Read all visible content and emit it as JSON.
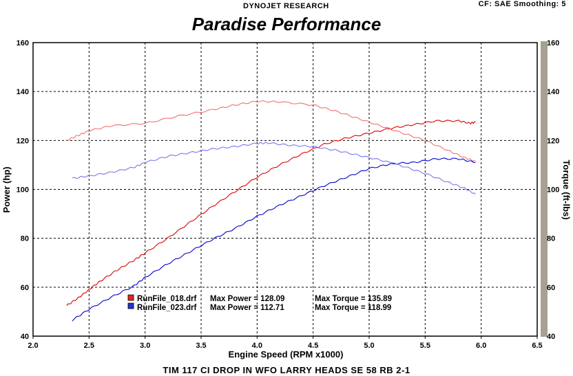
{
  "header": {
    "left": "DYNOJET RESEARCH",
    "right": "CF: SAE  Smoothing: 5"
  },
  "chart_data": {
    "type": "line",
    "title": "Paradise Performance",
    "subtitle": "TIM 117 CI DROP IN WFO LARRY HEADS SE 58 RB 2-1",
    "xlabel": "Engine Speed (RPM x1000)",
    "ylabel": "Power (hp)",
    "y2label": "Torque (ft-lbs)",
    "xlim": [
      2.0,
      6.5
    ],
    "ylim": [
      40,
      160
    ],
    "y2lim": [
      40,
      160
    ],
    "xticks": [
      "2.0",
      "2.5",
      "3.0",
      "3.5",
      "4.0",
      "4.5",
      "5.0",
      "5.5",
      "6.0",
      "6.5"
    ],
    "yticks": [
      "40",
      "60",
      "80",
      "100",
      "120",
      "140",
      "160"
    ],
    "grid": true,
    "colors": {
      "run018_power": "#dd0000",
      "run018_torque": "#f07070",
      "run023_power": "#0000cc",
      "run023_torque": "#7777ee"
    },
    "legend": [
      {
        "run": "RunFile_018.drf",
        "power_label": "Max Power = 128.09",
        "torque_label": "Max Torque = 135.89",
        "color": "#ee2222"
      },
      {
        "run": "RunFile_023.drf",
        "power_label": "Max Power = 112.71",
        "torque_label": "Max Torque = 118.99",
        "color": "#2233dd"
      }
    ],
    "series": [
      {
        "name": "RunFile_018 Power",
        "axis": "left",
        "color_key": "run018_power",
        "x": [
          2.3,
          2.4,
          2.5,
          2.6,
          2.75,
          2.9,
          3.0,
          3.2,
          3.4,
          3.6,
          3.8,
          4.0,
          4.2,
          4.4,
          4.6,
          4.8,
          5.0,
          5.2,
          5.4,
          5.6,
          5.8,
          5.9,
          5.95
        ],
        "y": [
          52.5,
          55.5,
          59,
          62.5,
          67,
          71,
          74,
          80,
          86.5,
          93,
          99,
          105,
          110,
          114.5,
          118.5,
          121,
          123,
          125,
          126.5,
          128,
          128,
          127,
          127.5
        ]
      },
      {
        "name": "RunFile_018 Torque",
        "axis": "right",
        "color_key": "run018_torque",
        "x": [
          2.3,
          2.4,
          2.5,
          2.7,
          3.0,
          3.3,
          3.6,
          3.8,
          4.0,
          4.2,
          4.5,
          4.7,
          4.9,
          5.1,
          5.3,
          5.5,
          5.7,
          5.85,
          5.95
        ],
        "y": [
          120,
          122,
          124,
          126,
          127,
          130,
          132.5,
          134.5,
          136,
          135.8,
          134.5,
          132,
          129,
          126,
          123,
          120,
          116,
          113,
          111.5
        ]
      },
      {
        "name": "RunFile_023 Power",
        "axis": "left",
        "color_key": "run023_power",
        "x": [
          2.35,
          2.5,
          2.7,
          2.9,
          3.0,
          3.2,
          3.4,
          3.6,
          3.8,
          4.0,
          4.2,
          4.4,
          4.6,
          4.8,
          5.0,
          5.2,
          5.4,
          5.6,
          5.8,
          5.95
        ],
        "y": [
          46.5,
          51,
          56,
          60.5,
          64,
          69.5,
          74.5,
          79.5,
          84,
          89,
          93.5,
          97.5,
          101.5,
          105,
          108.5,
          110.5,
          111,
          112.5,
          112.5,
          111
        ]
      },
      {
        "name": "RunFile_023 Torque",
        "axis": "right",
        "color_key": "run023_torque",
        "x": [
          2.35,
          2.5,
          2.7,
          2.9,
          3.0,
          3.2,
          3.4,
          3.6,
          3.8,
          4.0,
          4.1,
          4.3,
          4.5,
          4.7,
          4.9,
          5.1,
          5.3,
          5.5,
          5.7,
          5.85,
          5.95
        ],
        "y": [
          104.5,
          105.5,
          107,
          109,
          111,
          113.5,
          115,
          116.5,
          117.5,
          118.8,
          119,
          118,
          117.5,
          116,
          114,
          112,
          109.5,
          106.5,
          103,
          100.5,
          98
        ]
      }
    ]
  }
}
